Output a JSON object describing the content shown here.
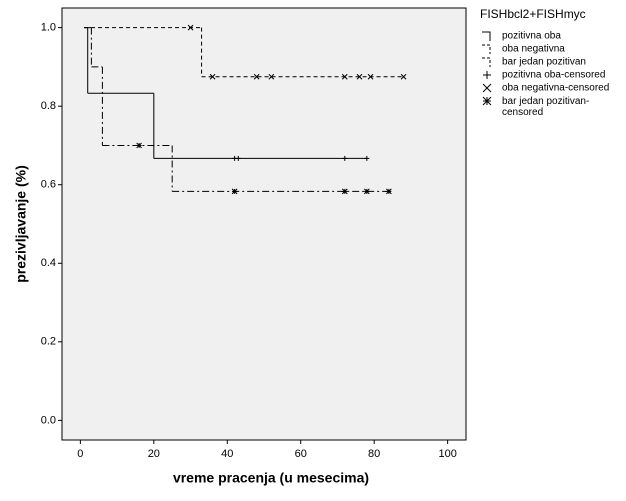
{
  "chart_data": {
    "type": "step",
    "xlabel": "vreme pracenja (u mesecima)",
    "ylabel": "prezivljavanje (%)",
    "legend_title": "FISHbcl2+FISHmyc",
    "legend_position": "right",
    "xlim": [
      -5,
      105
    ],
    "ylim": [
      -0.05,
      1.05
    ],
    "xticks": [
      0,
      20,
      40,
      60,
      80,
      100
    ],
    "yticks": [
      {
        "value": 0,
        "label": "0.0"
      },
      {
        "value": 0.2,
        "label": "0.2"
      },
      {
        "value": 0.4,
        "label": "0.4"
      },
      {
        "value": 0.6,
        "label": "0.6"
      },
      {
        "value": 0.8,
        "label": "0.8"
      },
      {
        "value": 1,
        "label": "1.0"
      }
    ],
    "series": [
      {
        "name": "pozitivna oba",
        "kind": "line",
        "style": "solid",
        "color": "#000000",
        "x": [
          1,
          2,
          20,
          78
        ],
        "values": [
          1.0,
          0.833,
          0.667,
          0.667
        ]
      },
      {
        "name": "oba negativna",
        "kind": "line",
        "style": "dashed",
        "color": "#000000",
        "x": [
          1,
          33,
          88
        ],
        "values": [
          1.0,
          0.875,
          0.875
        ]
      },
      {
        "name": "bar jedan pozitivan",
        "kind": "line",
        "style": "dashdot",
        "color": "#000000",
        "x": [
          1,
          3,
          6,
          25,
          84
        ],
        "values": [
          1.0,
          0.9,
          0.7,
          0.583,
          0.583
        ]
      },
      {
        "name": "pozitivna oba-censored",
        "kind": "censored",
        "marker": "plus",
        "color": "#000000",
        "x": [
          42,
          43,
          72,
          78
        ],
        "values": [
          0.667,
          0.667,
          0.667,
          0.667
        ]
      },
      {
        "name": "oba negativna-censored",
        "kind": "censored",
        "marker": "x",
        "color": "#000000",
        "x": [
          30,
          36,
          48,
          52,
          72,
          76,
          79,
          88
        ],
        "values": [
          1.0,
          0.875,
          0.875,
          0.875,
          0.875,
          0.875,
          0.875,
          0.875
        ]
      },
      {
        "name": "bar jedan pozitivan-censored",
        "kind": "censored",
        "marker": "star",
        "color": "#000000",
        "x": [
          16,
          42,
          72,
          78,
          84
        ],
        "values": [
          0.7,
          0.583,
          0.583,
          0.583,
          0.583
        ]
      }
    ]
  }
}
